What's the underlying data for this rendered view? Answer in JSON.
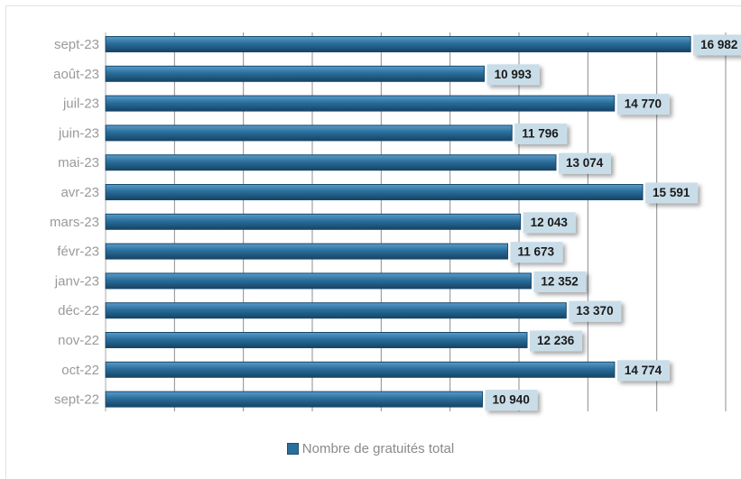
{
  "chart_data": {
    "type": "bar",
    "orientation": "horizontal",
    "categories": [
      "sept-23",
      "août-23",
      "juil-23",
      "juin-23",
      "mai-23",
      "avr-23",
      "mars-23",
      "févr-23",
      "janv-23",
      "déc-22",
      "nov-22",
      "oct-22",
      "sept-22"
    ],
    "value_labels": [
      "16 982",
      "10 993",
      "14 770",
      "11 796",
      "13 074",
      "15 591",
      "12 043",
      "11 673",
      "12 352",
      "13 370",
      "12 236",
      "14 774",
      "10 940"
    ],
    "series": [
      {
        "name": "Nombre de gratuités total",
        "values": [
          16982,
          10993,
          14770,
          11796,
          13074,
          15591,
          12043,
          11673,
          12352,
          13370,
          12236,
          14774,
          10940
        ]
      }
    ],
    "xlim": [
      0,
      18000
    ],
    "x_grid_step": 2000,
    "grid": true,
    "legend_position": "bottom",
    "colors": {
      "bar": "#2a6e9b",
      "bar_dark": "#174a6e",
      "bar_light": "#4f93c0",
      "label_bg": "#c9dde9"
    }
  }
}
